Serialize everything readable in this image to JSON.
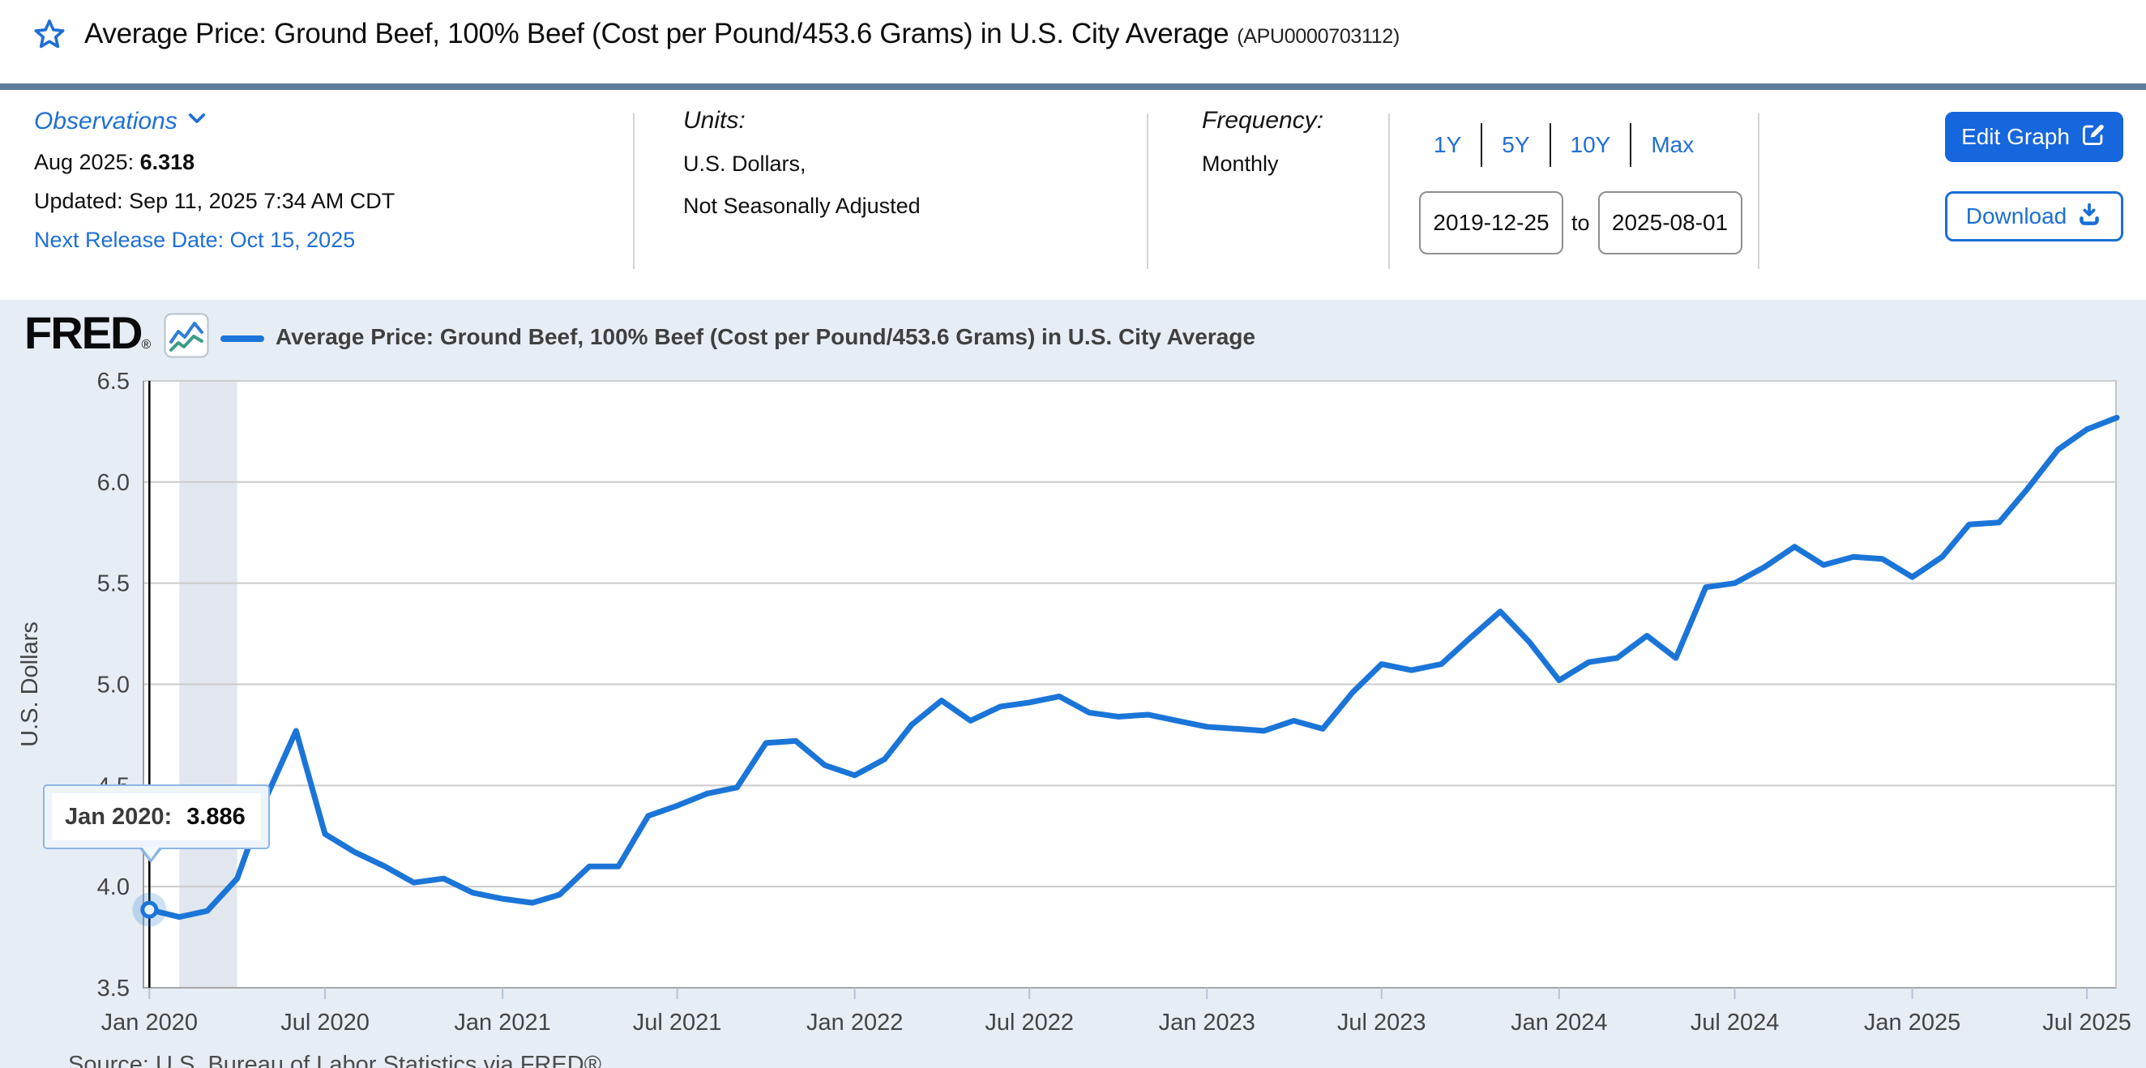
{
  "colors": {
    "accent_link": "#1f6fd6",
    "edit_button_bg": "#1666dd",
    "slate_bar": "#5f7e9c",
    "chart_bg": "#e7edf4",
    "line": "#1b75d8",
    "gridline": "#cbcbcb",
    "recession_band": "#e2e6ee",
    "axis_text": "#444444"
  },
  "header": {
    "title": "Average Price: Ground Beef, 100% Beef (Cost per Pound/453.6 Grams) in U.S. City Average",
    "series_id": "(APU0000703112)",
    "observations": {
      "label": "Observations",
      "latest_label": "Aug 2025:",
      "latest_value": "6.318",
      "updated": "Updated: Sep 11, 2025 7:34 AM CDT",
      "next_release": "Next Release Date: Oct 15, 2025"
    },
    "units": {
      "label": "Units:",
      "line1": "U.S. Dollars,",
      "line2": "Not Seasonally Adjusted"
    },
    "frequency": {
      "label": "Frequency:",
      "value": "Monthly"
    },
    "ranges": [
      "1Y",
      "5Y",
      "10Y",
      "Max"
    ],
    "date_from": "2019-12-25",
    "date_to": "2025-08-01",
    "to_label": "to",
    "buttons": {
      "edit": "Edit Graph",
      "download": "Download"
    }
  },
  "chart": {
    "brand": "FRED",
    "brand_reg": "®",
    "legend": "Average Price: Ground Beef, 100% Beef (Cost per Pound/453.6 Grams) in U.S. City Average",
    "ylabel": "U.S. Dollars",
    "source": "Source: U.S. Bureau of Labor Statistics via FRED®",
    "tooltip": {
      "label": "Jan 2020:",
      "value": "3.886"
    }
  },
  "chart_data": {
    "type": "line",
    "title": "Average Price: Ground Beef, 100% Beef (Cost per Pound/453.6 Grams) in U.S. City Average",
    "xlabel": "",
    "ylabel": "U.S. Dollars",
    "ylim": [
      3.5,
      6.5
    ],
    "yticks": [
      3.5,
      4.0,
      4.5,
      5.0,
      5.5,
      6.0,
      6.5
    ],
    "x_range": [
      "2019-12-25",
      "2025-08-01"
    ],
    "xticks": [
      {
        "label": "Jan 2020",
        "date": "2020-01-01"
      },
      {
        "label": "Jul 2020",
        "date": "2020-07-01"
      },
      {
        "label": "Jan 2021",
        "date": "2021-01-01"
      },
      {
        "label": "Jul 2021",
        "date": "2021-07-01"
      },
      {
        "label": "Jan 2022",
        "date": "2022-01-01"
      },
      {
        "label": "Jul 2022",
        "date": "2022-07-01"
      },
      {
        "label": "Jan 2023",
        "date": "2023-01-01"
      },
      {
        "label": "Jul 2023",
        "date": "2023-07-01"
      },
      {
        "label": "Jan 2024",
        "date": "2024-01-01"
      },
      {
        "label": "Jul 2024",
        "date": "2024-07-01"
      },
      {
        "label": "Jan 2025",
        "date": "2025-01-01"
      },
      {
        "label": "Jul 2025",
        "date": "2025-07-01"
      }
    ],
    "grid": true,
    "legend_position": "top",
    "line_color": "#1b75d8",
    "recession_band": [
      "2020-02-01",
      "2020-04-01"
    ],
    "highlight": {
      "date": "2020-01-01",
      "value": 3.886
    },
    "x": [
      "2020-01",
      "2020-02",
      "2020-03",
      "2020-04",
      "2020-05",
      "2020-06",
      "2020-07",
      "2020-08",
      "2020-09",
      "2020-10",
      "2020-11",
      "2020-12",
      "2021-01",
      "2021-02",
      "2021-03",
      "2021-04",
      "2021-05",
      "2021-06",
      "2021-07",
      "2021-08",
      "2021-09",
      "2021-10",
      "2021-11",
      "2021-12",
      "2022-01",
      "2022-02",
      "2022-03",
      "2022-04",
      "2022-05",
      "2022-06",
      "2022-07",
      "2022-08",
      "2022-09",
      "2022-10",
      "2022-11",
      "2022-12",
      "2023-01",
      "2023-02",
      "2023-03",
      "2023-04",
      "2023-05",
      "2023-06",
      "2023-07",
      "2023-08",
      "2023-09",
      "2023-10",
      "2023-11",
      "2023-12",
      "2024-01",
      "2024-02",
      "2024-03",
      "2024-04",
      "2024-05",
      "2024-06",
      "2024-07",
      "2024-08",
      "2024-09",
      "2024-10",
      "2024-11",
      "2024-12",
      "2025-01",
      "2025-02",
      "2025-03",
      "2025-04",
      "2025-05",
      "2025-06",
      "2025-07",
      "2025-08"
    ],
    "values": [
      3.886,
      3.85,
      3.88,
      4.04,
      4.44,
      4.77,
      4.26,
      4.17,
      4.1,
      4.02,
      4.04,
      3.97,
      3.94,
      3.92,
      3.96,
      4.1,
      4.1,
      4.35,
      4.4,
      4.46,
      4.49,
      4.71,
      4.72,
      4.6,
      4.55,
      4.63,
      4.8,
      4.92,
      4.82,
      4.89,
      4.91,
      4.94,
      4.86,
      4.84,
      4.85,
      4.82,
      4.79,
      4.78,
      4.77,
      4.82,
      4.78,
      4.96,
      5.1,
      5.07,
      5.1,
      5.23,
      5.36,
      5.21,
      5.02,
      5.11,
      5.13,
      5.24,
      5.13,
      5.48,
      5.5,
      5.58,
      5.68,
      5.59,
      5.63,
      5.62,
      5.53,
      5.63,
      5.79,
      5.8,
      5.97,
      6.16,
      6.26,
      6.318
    ]
  }
}
